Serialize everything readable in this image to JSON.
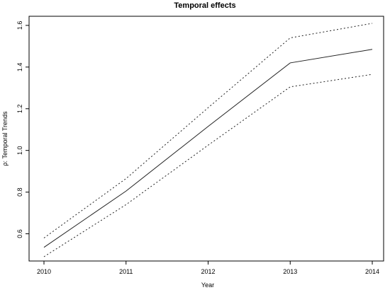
{
  "chart_data": {
    "type": "line",
    "title": "Temporal effects",
    "xlabel": "Year",
    "ylabel": "ρ: Temporal Trends",
    "x": [
      2010,
      2011,
      2012,
      2013,
      2014
    ],
    "xlim": [
      2010,
      2014
    ],
    "ylim": [
      0.5,
      1.62
    ],
    "xticks": [
      "2010",
      "2011",
      "2012",
      "2013",
      "2014"
    ],
    "yticks": [
      "0.6",
      "0.8",
      "1.0",
      "1.2",
      "1.4",
      "1.6"
    ],
    "ytick_values": [
      0.6,
      0.8,
      1.0,
      1.2,
      1.4,
      1.6
    ],
    "grid": false,
    "series": [
      {
        "style": "solid",
        "values": [
          0.535,
          0.805,
          1.115,
          1.42,
          1.485
        ]
      },
      {
        "style": "dotted",
        "values": [
          0.58,
          0.865,
          1.205,
          1.54,
          1.61
        ]
      },
      {
        "style": "dotted",
        "values": [
          0.49,
          0.74,
          1.025,
          1.305,
          1.365
        ]
      }
    ],
    "colors": {
      "line": "#222222",
      "axis": "#000000",
      "background": "#ffffff"
    }
  }
}
